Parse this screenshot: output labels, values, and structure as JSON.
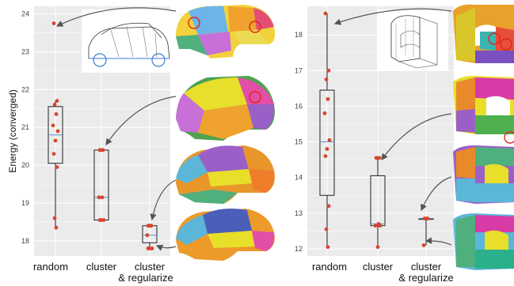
{
  "chart_data": [
    {
      "type": "box",
      "panel": "left",
      "ylabel": "Energy (converged)",
      "ylim": [
        17.6,
        24.2
      ],
      "yticks": [
        18,
        19,
        20,
        21,
        22,
        23,
        24
      ],
      "categories": [
        "random",
        "cluster",
        "cluster\n& regularize"
      ],
      "grid": true,
      "boxes": [
        {
          "category": "random",
          "min": 18.3,
          "q1": 20.05,
          "median": 20.8,
          "q3": 21.55,
          "max": 21.7,
          "points": [
            23.75,
            21.7,
            21.6,
            21.35,
            21.05,
            20.9,
            20.65,
            20.3,
            19.95,
            18.6,
            18.35
          ]
        },
        {
          "category": "cluster",
          "min": 18.55,
          "q1": 18.55,
          "median": 19.15,
          "q3": 20.4,
          "max": 20.4,
          "points": [
            20.4,
            20.4,
            20.4,
            19.15,
            19.15,
            18.55,
            18.55,
            18.55
          ]
        },
        {
          "category": "cluster\n& regularize",
          "min": 17.8,
          "q1": 17.95,
          "median": 18.15,
          "q3": 18.4,
          "max": 18.4,
          "points": [
            18.4,
            18.4,
            18.4,
            18.4,
            18.15,
            17.8,
            17.8,
            17.8
          ]
        }
      ]
    },
    {
      "type": "box",
      "panel": "right",
      "ylabel": "",
      "ylim": [
        11.8,
        18.8
      ],
      "yticks": [
        12,
        13,
        14,
        15,
        16,
        17,
        18
      ],
      "categories": [
        "random",
        "cluster",
        "cluster\n& regularize"
      ],
      "grid": true,
      "boxes": [
        {
          "category": "random",
          "min": 12.05,
          "q1": 13.5,
          "median": 15.0,
          "q3": 16.45,
          "max": 18.6,
          "points": [
            18.6,
            17.0,
            16.75,
            16.2,
            15.8,
            15.05,
            14.8,
            14.6,
            13.2,
            12.55,
            12.05
          ]
        },
        {
          "category": "cluster",
          "min": 12.05,
          "q1": 12.65,
          "median": 12.7,
          "q3": 14.05,
          "max": 14.55,
          "points": [
            14.55,
            14.55,
            14.55,
            12.7,
            12.65,
            12.65,
            12.05
          ]
        },
        {
          "category": "cluster\n& regularize",
          "min": 12.1,
          "q1": 12.85,
          "median": 12.85,
          "q3": 12.85,
          "max": 12.85,
          "points": [
            12.85,
            12.85,
            12.85,
            12.85,
            12.1
          ]
        }
      ]
    }
  ],
  "colors": {
    "panel_bg": "#ebebeb",
    "grid": "#ffffff",
    "point": "#d8452e",
    "median": "#5b8fcf",
    "box": "#222222",
    "arrow": "#555555",
    "highlight_circle": "#e0231c"
  },
  "images": [
    {
      "name": "car-wireframe-inset",
      "panel": "left"
    },
    {
      "name": "car-segmentation-random",
      "panel": "left"
    },
    {
      "name": "car-segmentation-cluster",
      "panel": "left"
    },
    {
      "name": "car-segmentation-cluster-regularize-a",
      "panel": "left"
    },
    {
      "name": "car-segmentation-cluster-regularize-b",
      "panel": "left"
    },
    {
      "name": "bracket-wireframe-inset",
      "panel": "right"
    },
    {
      "name": "bracket-segmentation-random",
      "panel": "right"
    },
    {
      "name": "bracket-segmentation-cluster",
      "panel": "right"
    },
    {
      "name": "bracket-segmentation-cluster-regularize-a",
      "panel": "right"
    },
    {
      "name": "bracket-segmentation-cluster-regularize-b",
      "panel": "right"
    }
  ]
}
